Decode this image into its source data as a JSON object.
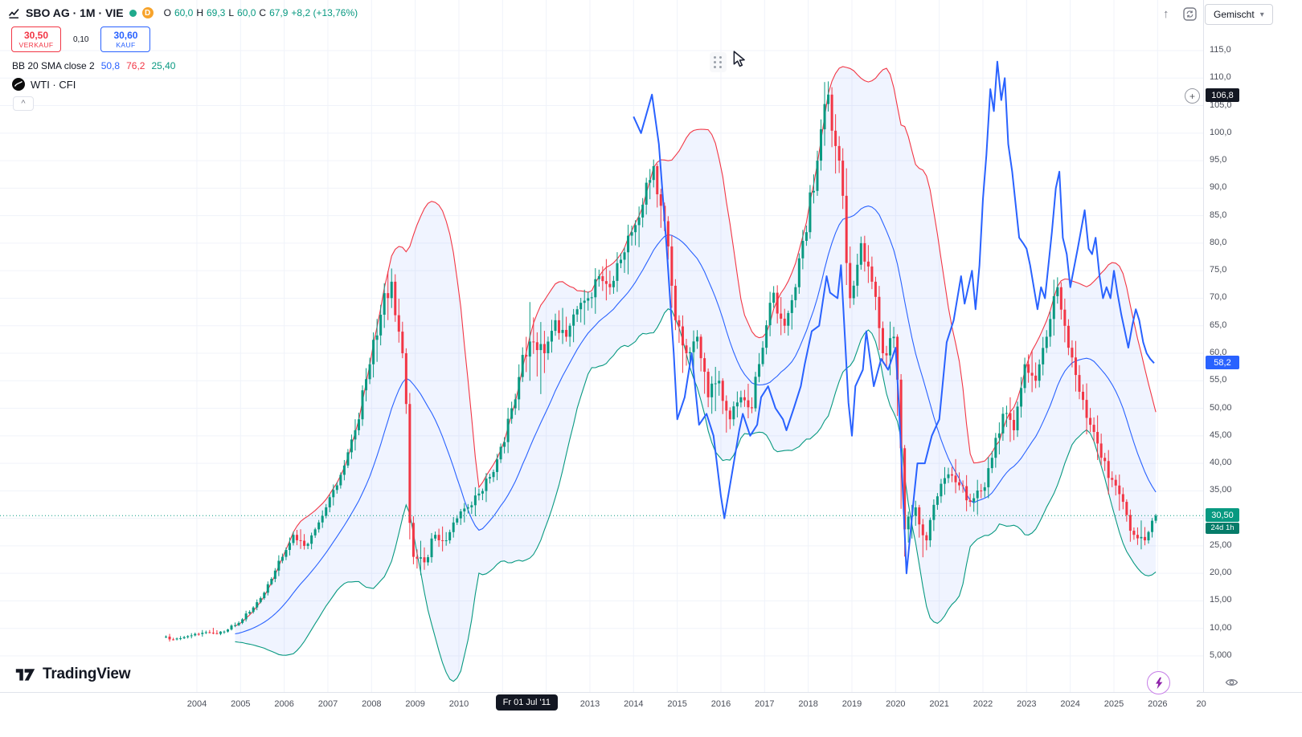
{
  "header": {
    "title": "SBO AG · 1M · VIE",
    "delayed_badge": "D",
    "ohlc": {
      "o_key": "O",
      "o": "60,0",
      "h_key": "H",
      "h": "69,3",
      "l_key": "L",
      "l": "60,0",
      "c_key": "C",
      "c": "67,9"
    },
    "change": "+8,2 (+13,76%)"
  },
  "trade": {
    "sell_price": "30,50",
    "sell_label": "VERKAUF",
    "spread": "0,10",
    "buy_price": "30,60",
    "buy_label": "KAUF"
  },
  "indicators": {
    "bb": {
      "title": "BB 20 SMA close 2",
      "basis": "50,8",
      "upper": "76,2",
      "lower": "25,40"
    },
    "wti": {
      "title": "WTI · CFI"
    }
  },
  "top_right": {
    "merged_label": "Gemischt"
  },
  "icons": {
    "chevron_down": "▾",
    "collapse_caret": "^",
    "arrow_up": "↑",
    "plus": "+"
  },
  "price_axis": {
    "ticks": [
      {
        "label": "115,0",
        "value": 115
      },
      {
        "label": "110,0",
        "value": 110
      },
      {
        "label": "105,0",
        "value": 105
      },
      {
        "label": "100,0",
        "value": 100
      },
      {
        "label": "95,0",
        "value": 95
      },
      {
        "label": "90,0",
        "value": 90
      },
      {
        "label": "85,0",
        "value": 85
      },
      {
        "label": "80,0",
        "value": 80
      },
      {
        "label": "75,0",
        "value": 75
      },
      {
        "label": "70,0",
        "value": 70
      },
      {
        "label": "65,0",
        "value": 65
      },
      {
        "label": "60,0",
        "value": 60
      },
      {
        "label": "55,0",
        "value": 55
      },
      {
        "label": "50,00",
        "value": 50
      },
      {
        "label": "45,00",
        "value": 45
      },
      {
        "label": "40,00",
        "value": 40
      },
      {
        "label": "35,00",
        "value": 35
      },
      {
        "label": "25,00",
        "value": 25
      },
      {
        "label": "20,00",
        "value": 20
      },
      {
        "label": "15,00",
        "value": 15
      },
      {
        "label": "10,00",
        "value": 10
      },
      {
        "label": "5,000",
        "value": 5
      }
    ],
    "crosshair_price": {
      "label": "106,8",
      "value": 106.8
    },
    "wti_price": {
      "label": "58,2",
      "value": 58.2
    },
    "last_price": {
      "label": "30,50",
      "value": 30.5,
      "countdown": "24d 1h"
    }
  },
  "time_axis": {
    "years": [
      {
        "label": "2004",
        "t": 2004
      },
      {
        "label": "2005",
        "t": 2005
      },
      {
        "label": "2006",
        "t": 2006
      },
      {
        "label": "2007",
        "t": 2007
      },
      {
        "label": "2008",
        "t": 2008
      },
      {
        "label": "2009",
        "t": 2009
      },
      {
        "label": "2010",
        "t": 2010
      },
      {
        "label": "2013",
        "t": 2013
      },
      {
        "label": "2014",
        "t": 2014
      },
      {
        "label": "2015",
        "t": 2015
      },
      {
        "label": "2016",
        "t": 2016
      },
      {
        "label": "2017",
        "t": 2017
      },
      {
        "label": "2018",
        "t": 2018
      },
      {
        "label": "2019",
        "t": 2019
      },
      {
        "label": "2020",
        "t": 2020
      },
      {
        "label": "2021",
        "t": 2021
      },
      {
        "label": "2022",
        "t": 2022
      },
      {
        "label": "2023",
        "t": 2023
      },
      {
        "label": "2024",
        "t": 2024
      },
      {
        "label": "2025",
        "t": 2025
      },
      {
        "label": "2026",
        "t": 2026
      },
      {
        "label": "20",
        "t": 2027
      }
    ],
    "crosshair_time": {
      "label": "Fr 01 Jul '11",
      "t": 2011.54
    }
  },
  "footer": {
    "brand": "TradingView"
  },
  "colors": {
    "up": "#089981",
    "down": "#f23645",
    "bb_upper": "#f23645",
    "bb_basis": "#2962ff",
    "bb_lower": "#089981",
    "bb_fill": "rgba(41,98,255,0.07)",
    "wti": "#2962ff",
    "grid": "#f0f3fa",
    "axis_border": "#e0e3eb",
    "text": "#131722",
    "muted": "#787b86"
  },
  "chart_data": {
    "type": "candlestick",
    "symbol": "SBO AG",
    "interval": "1M",
    "exchange": "VIE",
    "ylim_visible": [
      5,
      115
    ],
    "xlim_visible": [
      2003.2,
      2027.1
    ],
    "current_price": 30.5,
    "crosshair": {
      "time": "Fr 01 Jul '11",
      "price": 106.8,
      "ohlc": {
        "o": 60.0,
        "h": 69.3,
        "l": 60.0,
        "c": 67.9
      },
      "change_abs": 8.2,
      "change_pct": 13.76
    },
    "bollinger": {
      "length": 20,
      "source": "close",
      "mult": 2,
      "legend_basis": 50.8,
      "legend_upper": 76.2,
      "legend_lower": 25.4
    },
    "sbo_candles_quarterly_tohlc": [
      [
        2003.25,
        8.5,
        9.0,
        7.6,
        8.0
      ],
      [
        2003.5,
        8.0,
        8.8,
        7.7,
        8.4
      ],
      [
        2003.75,
        8.4,
        9.4,
        8.0,
        9.0
      ],
      [
        2004.0,
        9.0,
        9.8,
        8.5,
        9.3
      ],
      [
        2004.25,
        9.3,
        10.2,
        8.8,
        9.0
      ],
      [
        2004.5,
        9.0,
        10.0,
        8.6,
        9.8
      ],
      [
        2004.75,
        9.8,
        11.5,
        9.5,
        11.0
      ],
      [
        2005.0,
        11.0,
        13.5,
        10.6,
        13.0
      ],
      [
        2005.25,
        13.0,
        16.0,
        12.5,
        15.5
      ],
      [
        2005.5,
        15.5,
        19.5,
        15.0,
        19.0
      ],
      [
        2005.75,
        19.0,
        24.0,
        18.0,
        23.0
      ],
      [
        2006.0,
        23.0,
        28.0,
        22.0,
        27.0
      ],
      [
        2006.25,
        27.0,
        29.0,
        23.5,
        25.0
      ],
      [
        2006.5,
        25.0,
        28.5,
        24.0,
        28.0
      ],
      [
        2006.75,
        28.0,
        33.0,
        27.0,
        32.0
      ],
      [
        2007.0,
        32.0,
        37.0,
        30.5,
        36.0
      ],
      [
        2007.25,
        36.0,
        43.0,
        35.0,
        42.0
      ],
      [
        2007.5,
        42.0,
        50.0,
        40.0,
        48.0
      ],
      [
        2007.75,
        48.0,
        60.0,
        46.0,
        58.0
      ],
      [
        2008.0,
        58.0,
        70.0,
        54.0,
        67.0
      ],
      [
        2008.25,
        67.0,
        77.0,
        63.0,
        73.0
      ],
      [
        2008.5,
        73.0,
        76.0,
        58.0,
        60.0
      ],
      [
        2008.75,
        60.0,
        62.0,
        20.0,
        23.0
      ],
      [
        2009.0,
        23.0,
        26.0,
        19.0,
        22.0
      ],
      [
        2009.25,
        22.0,
        28.0,
        21.0,
        27.0
      ],
      [
        2009.5,
        27.0,
        29.5,
        24.0,
        26.0
      ],
      [
        2009.75,
        26.0,
        31.0,
        25.0,
        30.0
      ],
      [
        2010.0,
        30.0,
        33.0,
        28.0,
        32.0
      ],
      [
        2010.25,
        32.0,
        36.0,
        30.0,
        34.5
      ],
      [
        2010.5,
        34.5,
        38.5,
        32.5,
        37.5
      ],
      [
        2010.75,
        37.5,
        44.0,
        36.0,
        43.0
      ],
      [
        2011.0,
        43.0,
        52.0,
        41.0,
        50.0
      ],
      [
        2011.25,
        50.0,
        62.0,
        48.0,
        59.7
      ],
      [
        2011.5,
        59.7,
        69.3,
        55.0,
        62.0
      ],
      [
        2011.75,
        62.0,
        66.0,
        52.0,
        60.0
      ],
      [
        2012.0,
        60.0,
        68.0,
        58.0,
        66.0
      ],
      [
        2012.25,
        66.0,
        70.0,
        61.0,
        63.0
      ],
      [
        2012.5,
        63.0,
        69.0,
        60.0,
        68.0
      ],
      [
        2012.75,
        68.0,
        72.0,
        64.0,
        70.0
      ],
      [
        2013.0,
        70.0,
        76.0,
        67.0,
        74.0
      ],
      [
        2013.25,
        74.0,
        78.0,
        69.0,
        72.0
      ],
      [
        2013.5,
        72.0,
        79.0,
        70.0,
        77.0
      ],
      [
        2013.75,
        77.0,
        84.0,
        73.0,
        82.0
      ],
      [
        2014.0,
        82.0,
        89.0,
        78.0,
        87.0
      ],
      [
        2014.25,
        87.0,
        96.0,
        84.0,
        94.0
      ],
      [
        2014.5,
        94.0,
        95.0,
        80.0,
        84.0
      ],
      [
        2014.75,
        84.0,
        86.0,
        62.0,
        66.0
      ],
      [
        2015.0,
        66.0,
        68.0,
        55.0,
        60.0
      ],
      [
        2015.25,
        60.0,
        65.0,
        57.0,
        63.0
      ],
      [
        2015.5,
        63.0,
        64.0,
        48.0,
        52.0
      ],
      [
        2015.75,
        52.0,
        58.0,
        47.0,
        55.0
      ],
      [
        2016.0,
        55.0,
        56.0,
        44.0,
        48.0
      ],
      [
        2016.25,
        48.0,
        54.0,
        46.0,
        52.0
      ],
      [
        2016.5,
        52.0,
        55.0,
        48.0,
        50.0
      ],
      [
        2016.75,
        50.0,
        63.0,
        49.0,
        61.0
      ],
      [
        2017.0,
        61.0,
        73.0,
        59.0,
        71.0
      ],
      [
        2017.25,
        71.0,
        74.0,
        62.0,
        65.0
      ],
      [
        2017.5,
        65.0,
        73.0,
        62.0,
        72.0
      ],
      [
        2017.75,
        72.0,
        84.0,
        70.0,
        82.0
      ],
      [
        2018.0,
        82.0,
        98.0,
        80.0,
        95.0
      ],
      [
        2018.25,
        95.0,
        111.0,
        92.0,
        107.0
      ],
      [
        2018.5,
        107.0,
        110.0,
        90.0,
        95.0
      ],
      [
        2018.75,
        95.0,
        100.0,
        66.0,
        70.0
      ],
      [
        2019.0,
        70.0,
        82.0,
        68.0,
        80.0
      ],
      [
        2019.25,
        80.0,
        83.0,
        70.0,
        73.0
      ],
      [
        2019.5,
        73.0,
        75.0,
        56.0,
        60.0
      ],
      [
        2019.75,
        60.0,
        66.0,
        56.0,
        63.0
      ],
      [
        2020.0,
        63.0,
        64.0,
        17.0,
        28.0
      ],
      [
        2020.25,
        28.0,
        34.0,
        24.0,
        32.0
      ],
      [
        2020.5,
        32.0,
        33.0,
        22.0,
        26.0
      ],
      [
        2020.75,
        26.0,
        35.0,
        24.0,
        34.0
      ],
      [
        2021.0,
        34.0,
        40.0,
        32.0,
        38.0
      ],
      [
        2021.25,
        38.0,
        41.0,
        34.0,
        36.0
      ],
      [
        2021.5,
        36.0,
        38.0,
        31.0,
        33.0
      ],
      [
        2021.75,
        33.0,
        37.0,
        30.0,
        35.0
      ],
      [
        2022.0,
        35.0,
        43.0,
        33.0,
        41.0
      ],
      [
        2022.25,
        41.0,
        51.0,
        38.0,
        49.0
      ],
      [
        2022.5,
        49.0,
        52.0,
        42.0,
        46.0
      ],
      [
        2022.75,
        46.0,
        60.0,
        44.0,
        58.0
      ],
      [
        2023.0,
        58.0,
        62.0,
        52.0,
        55.0
      ],
      [
        2023.25,
        55.0,
        65.0,
        53.0,
        63.0
      ],
      [
        2023.5,
        63.0,
        75.0,
        60.0,
        72.0
      ],
      [
        2023.75,
        72.0,
        74.0,
        58.0,
        61.0
      ],
      [
        2024.0,
        61.0,
        64.0,
        50.0,
        53.0
      ],
      [
        2024.25,
        53.0,
        56.0,
        44.0,
        47.0
      ],
      [
        2024.5,
        47.0,
        50.0,
        38.0,
        41.0
      ],
      [
        2024.75,
        41.0,
        43.0,
        34.0,
        37.0
      ],
      [
        2025.0,
        37.0,
        39.0,
        30.0,
        33.0
      ],
      [
        2025.25,
        33.0,
        34.0,
        25.0,
        27.0
      ],
      [
        2025.5,
        27.0,
        30.0,
        24.0,
        26.0
      ],
      [
        2025.75,
        26.0,
        31.0,
        25.0,
        30.5
      ]
    ],
    "wti_line": {
      "name": "WTI · CFI",
      "last": 58.2,
      "points_tv": [
        [
          2014.0,
          103
        ],
        [
          2014.17,
          100
        ],
        [
          2014.42,
          107
        ],
        [
          2014.58,
          98
        ],
        [
          2014.75,
          80
        ],
        [
          2014.92,
          60
        ],
        [
          2015.0,
          48
        ],
        [
          2015.17,
          52
        ],
        [
          2015.33,
          60
        ],
        [
          2015.5,
          47
        ],
        [
          2015.67,
          49
        ],
        [
          2015.83,
          45
        ],
        [
          2016.0,
          34
        ],
        [
          2016.08,
          30
        ],
        [
          2016.25,
          38
        ],
        [
          2016.42,
          46
        ],
        [
          2016.5,
          49
        ],
        [
          2016.67,
          45
        ],
        [
          2016.83,
          47
        ],
        [
          2016.92,
          52
        ],
        [
          2017.08,
          54
        ],
        [
          2017.25,
          50
        ],
        [
          2017.42,
          48
        ],
        [
          2017.5,
          46
        ],
        [
          2017.67,
          50
        ],
        [
          2017.83,
          54
        ],
        [
          2017.92,
          58
        ],
        [
          2018.08,
          64
        ],
        [
          2018.25,
          65
        ],
        [
          2018.42,
          74
        ],
        [
          2018.5,
          71
        ],
        [
          2018.67,
          70
        ],
        [
          2018.75,
          76
        ],
        [
          2018.92,
          51
        ],
        [
          2019.0,
          45
        ],
        [
          2019.08,
          54
        ],
        [
          2019.25,
          57
        ],
        [
          2019.33,
          64
        ],
        [
          2019.5,
          54
        ],
        [
          2019.67,
          59
        ],
        [
          2019.83,
          57
        ],
        [
          2020.0,
          61
        ],
        [
          2020.08,
          50
        ],
        [
          2020.25,
          20
        ],
        [
          2020.42,
          34
        ],
        [
          2020.5,
          40
        ],
        [
          2020.67,
          40
        ],
        [
          2020.83,
          45
        ],
        [
          2021.0,
          48
        ],
        [
          2021.17,
          62
        ],
        [
          2021.33,
          66
        ],
        [
          2021.5,
          74
        ],
        [
          2021.58,
          69
        ],
        [
          2021.75,
          75
        ],
        [
          2021.83,
          68
        ],
        [
          2021.92,
          76
        ],
        [
          2022.0,
          88
        ],
        [
          2022.08,
          96
        ],
        [
          2022.17,
          108
        ],
        [
          2022.25,
          104
        ],
        [
          2022.33,
          113
        ],
        [
          2022.42,
          106
        ],
        [
          2022.5,
          110
        ],
        [
          2022.58,
          98
        ],
        [
          2022.67,
          93
        ],
        [
          2022.83,
          81
        ],
        [
          2022.92,
          80
        ],
        [
          2023.0,
          79
        ],
        [
          2023.08,
          76
        ],
        [
          2023.25,
          68
        ],
        [
          2023.33,
          72
        ],
        [
          2023.42,
          70
        ],
        [
          2023.58,
          82
        ],
        [
          2023.67,
          90
        ],
        [
          2023.75,
          93
        ],
        [
          2023.83,
          81
        ],
        [
          2023.92,
          78
        ],
        [
          2024.0,
          72
        ],
        [
          2024.17,
          79
        ],
        [
          2024.33,
          86
        ],
        [
          2024.42,
          79
        ],
        [
          2024.5,
          78
        ],
        [
          2024.58,
          81
        ],
        [
          2024.67,
          74
        ],
        [
          2024.75,
          70
        ],
        [
          2024.83,
          72
        ],
        [
          2024.92,
          70
        ],
        [
          2025.0,
          75
        ],
        [
          2025.08,
          71
        ],
        [
          2025.17,
          67
        ],
        [
          2025.25,
          64
        ],
        [
          2025.33,
          61
        ],
        [
          2025.42,
          65
        ],
        [
          2025.5,
          68
        ],
        [
          2025.58,
          66
        ],
        [
          2025.67,
          62
        ],
        [
          2025.75,
          60
        ],
        [
          2025.83,
          59
        ],
        [
          2025.92,
          58.2
        ]
      ]
    }
  }
}
